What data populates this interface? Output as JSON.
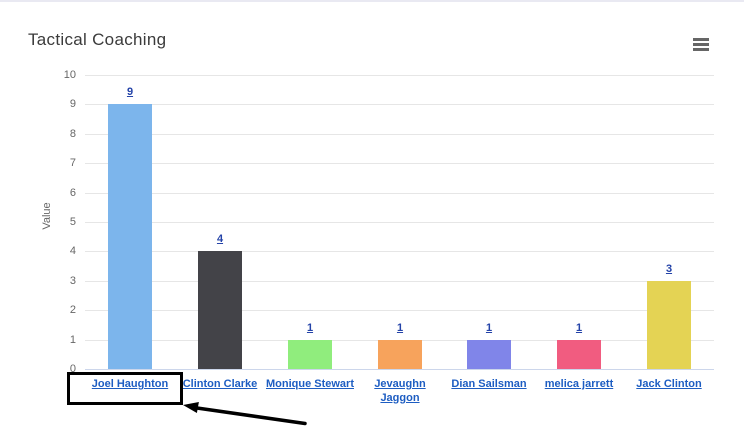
{
  "header": {
    "title": "Tactical Coaching"
  },
  "menu": {
    "icon": "hamburger-icon",
    "color": "#666666"
  },
  "chart_data": {
    "type": "bar",
    "title": "Tactical Coaching",
    "xlabel": "",
    "ylabel": "Value",
    "ylim": [
      0,
      10
    ],
    "yticks": [
      "0",
      "1",
      "2",
      "3",
      "4",
      "5",
      "6",
      "7",
      "8",
      "9",
      "10"
    ],
    "grid": true,
    "legend": "none",
    "categories": [
      "Joel Haughton",
      "Clinton Clarke",
      "Monique Stewart",
      "Jevaughn Jaggon",
      "Dian Sailsman",
      "melica jarrett",
      "Jack Clinton"
    ],
    "values": [
      9,
      4,
      1,
      1,
      1,
      1,
      3
    ],
    "data_labels": [
      "9",
      "4",
      "1",
      "1",
      "1",
      "1",
      "3"
    ],
    "bar_colors": [
      "#7cb5ec",
      "#434348",
      "#90ed7d",
      "#f7a35c",
      "#8085e9",
      "#f15c80",
      "#e4d354"
    ],
    "label_style": "blue underlined links above bars and below axis"
  },
  "annotation": {
    "type": "rectangle-with-arrow",
    "target_label": "Joel Haughton",
    "color": "#000000"
  },
  "colors": {
    "panel_background": "#ffffff",
    "panel_top_border": "#e9e9f2",
    "title_text": "#3b3b3b",
    "gridline": "#e6e6e6",
    "x_axis_line": "#ccd6eb",
    "ytick_text": "#666666",
    "value_link": "#2443a8",
    "category_link": "#1d5dc2"
  }
}
